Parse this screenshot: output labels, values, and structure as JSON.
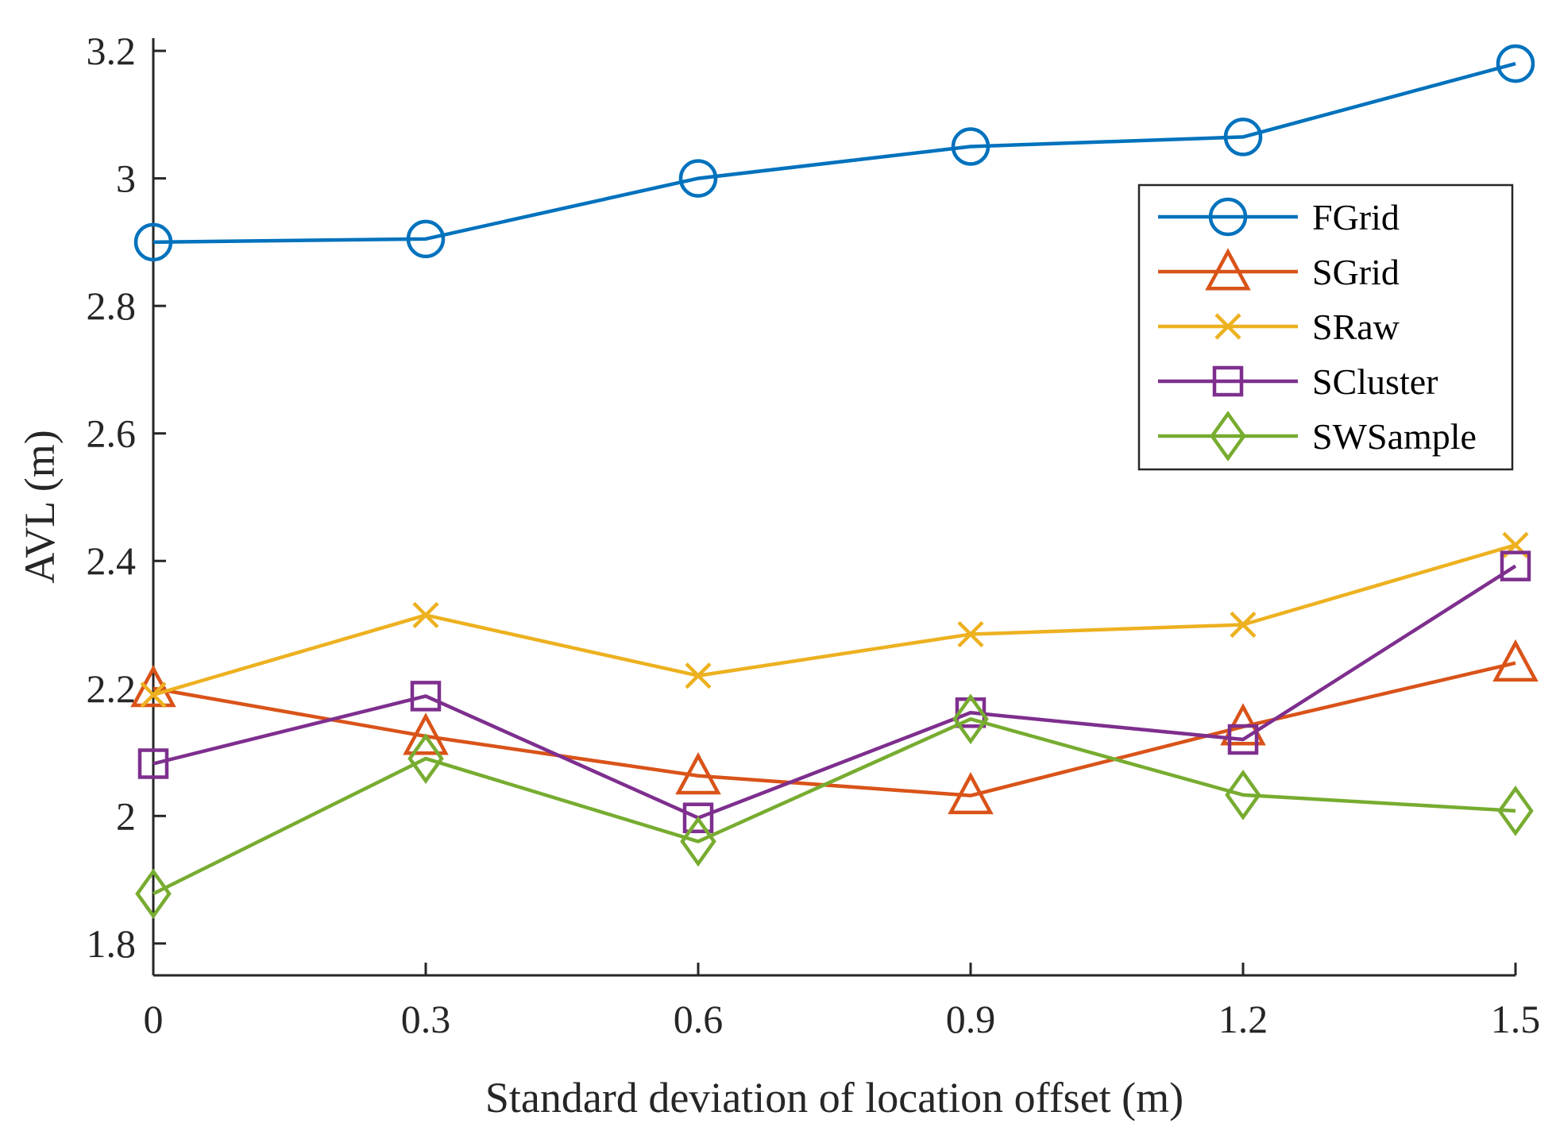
{
  "chart_data": {
    "type": "line",
    "title": "",
    "xlabel": "Standard deviation of location offset (m)",
    "ylabel": "AVL (m)",
    "x": [
      0,
      0.3,
      0.6,
      0.9,
      1.2,
      1.5
    ],
    "x_tick_labels": [
      "0",
      "0.3",
      "0.6",
      "0.9",
      "1.2",
      "1.5"
    ],
    "y_ticks": [
      1.8,
      2,
      2.2,
      2.4,
      2.6,
      2.8,
      3,
      3.2
    ],
    "y_tick_labels": [
      "1.8",
      "2",
      "2.2",
      "2.4",
      "2.6",
      "2.8",
      "3",
      "3.2"
    ],
    "xlim": [
      0,
      1.5
    ],
    "ylim": [
      1.75,
      3.22
    ],
    "grid": false,
    "legend_position": "top-right",
    "series": [
      {
        "name": "FGrid",
        "marker": "circle",
        "color": "#0072BD",
        "values": [
          2.9,
          2.905,
          3.0,
          3.05,
          3.065,
          3.18
        ]
      },
      {
        "name": "SGrid",
        "marker": "triangle",
        "color": "#D95319",
        "values": [
          2.2,
          2.125,
          2.063,
          2.032,
          2.14,
          2.24
        ]
      },
      {
        "name": "SRaw",
        "marker": "x",
        "color": "#EDB120",
        "values": [
          2.19,
          2.315,
          2.22,
          2.285,
          2.3,
          2.425
        ]
      },
      {
        "name": "SCluster",
        "marker": "square",
        "color": "#7E2F8E",
        "values": [
          2.082,
          2.188,
          1.997,
          2.162,
          2.12,
          2.392
        ]
      },
      {
        "name": "SWSample",
        "marker": "diamond",
        "color": "#77AC30",
        "values": [
          1.878,
          2.09,
          1.96,
          2.152,
          2.033,
          2.008
        ]
      }
    ]
  }
}
